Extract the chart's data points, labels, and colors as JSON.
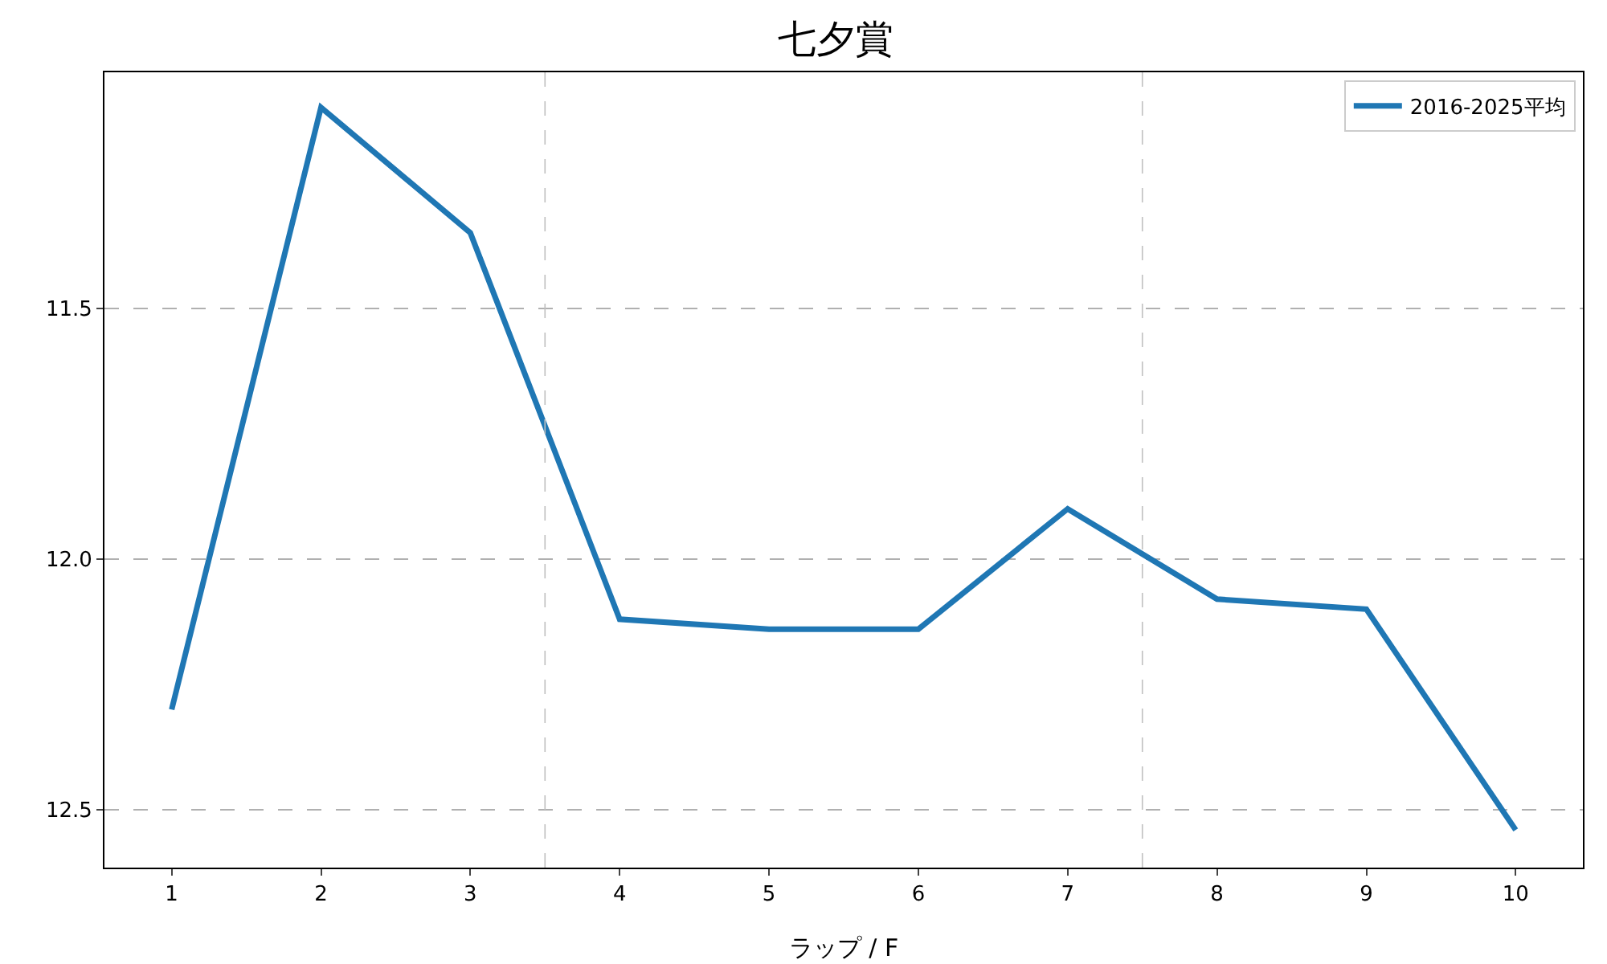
{
  "chart_data": {
    "type": "line",
    "title": "七夕賞",
    "xlabel": "ラップ / F",
    "x": [
      1,
      2,
      3,
      4,
      5,
      6,
      7,
      8,
      9,
      10
    ],
    "series": [
      {
        "name": "2016-2025平均",
        "color": "#1f77b4",
        "values": [
          12.3,
          11.1,
          11.35,
          12.12,
          12.14,
          12.14,
          11.9,
          12.08,
          12.1,
          12.54
        ]
      }
    ],
    "xlim": [
      0.55,
      10.45
    ],
    "xticks": [
      1,
      2,
      3,
      4,
      5,
      6,
      7,
      8,
      9,
      10
    ],
    "ylim": [
      12.615,
      11.03
    ],
    "yticks": [
      {
        "value": 11.5,
        "label": "11.5"
      },
      {
        "value": 12.0,
        "label": "12.0"
      },
      {
        "value": 12.5,
        "label": "12.5"
      }
    ],
    "ref_lines": [
      {
        "axis": "x",
        "value": 3.5,
        "label": null,
        "color": "#c0c0c0",
        "line_style": "dashed"
      },
      {
        "axis": "x",
        "value": 7.5,
        "label": null,
        "color": "#c0c0c0",
        "line_style": "dashed"
      }
    ],
    "grid": "y",
    "legend": "top right",
    "marker": "none",
    "line_style": "solid"
  }
}
